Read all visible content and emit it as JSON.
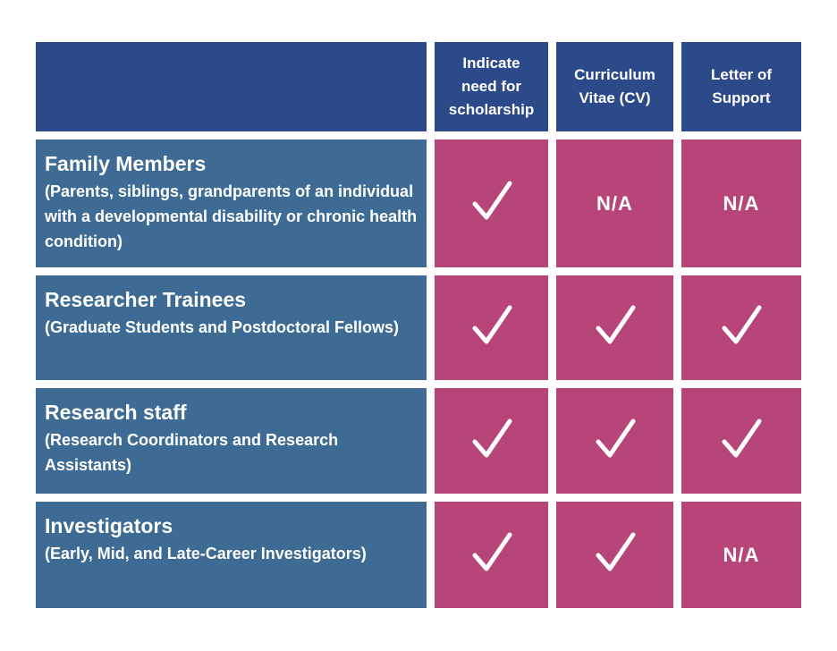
{
  "colors": {
    "header": "#2c4989",
    "row_label": "#3d6b94",
    "cell": "#b8457a",
    "text": "#ffffff"
  },
  "columns": [
    {
      "label": "Indicate\nneed for\nscholarship"
    },
    {
      "label": "Curriculum\nVitae (CV)"
    },
    {
      "label": "Letter of\nSupport"
    }
  ],
  "rows": [
    {
      "title": "Family Members",
      "description": "(Parents, siblings, grandparents of an individual with a developmental disability or chronic health condition)",
      "values": [
        "check-icon",
        "N/A",
        "N/A"
      ]
    },
    {
      "title": "Researcher Trainees",
      "description": "(Graduate Students and Postdoctoral Fellows)",
      "values": [
        "check-icon",
        "check-icon",
        "check-icon"
      ]
    },
    {
      "title": "Research staff",
      "description": "(Research Coordinators and Research Assistants)",
      "values": [
        "check-icon",
        "check-icon",
        "check-icon"
      ]
    },
    {
      "title": "Investigators",
      "description": "(Early, Mid, and Late-Career Investigators)",
      "values": [
        "check-icon",
        "check-icon",
        "N/A"
      ]
    }
  ]
}
